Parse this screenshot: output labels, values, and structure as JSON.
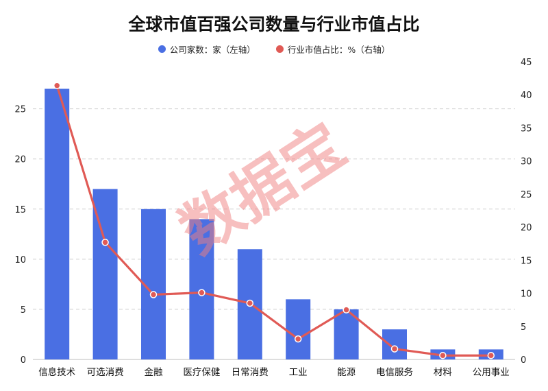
{
  "title": "全球市值百强公司数量与行业市值占比",
  "watermark": "数据宝",
  "colors": {
    "bar": "#4a6fe3",
    "line": "#e05a55",
    "grid": "#cfcfcf",
    "watermark": "#f08080"
  },
  "chart_data": {
    "type": "bar",
    "title": "全球市值百强公司数量与行业市值占比",
    "categories": [
      "信息技术",
      "可选消费",
      "金融",
      "医疗保健",
      "日常消费",
      "工业",
      "能源",
      "电信服务",
      "材料",
      "公用事业"
    ],
    "series": [
      {
        "name": "公司家数：家（左轴）",
        "type": "bar",
        "axis": "left",
        "values": [
          27,
          17,
          15,
          14,
          11,
          6,
          5,
          3,
          1,
          1
        ]
      },
      {
        "name": "行业市值占比：%（右轴）",
        "type": "line",
        "axis": "right",
        "values": [
          41.4,
          17.7,
          9.8,
          10.1,
          8.5,
          3.1,
          7.5,
          1.6,
          0.6,
          0.6
        ]
      }
    ],
    "y_left": {
      "range": [
        0,
        29.7
      ],
      "ticks": [
        0,
        5,
        10,
        15,
        20,
        25
      ]
    },
    "y_right": {
      "range": [
        0,
        45
      ],
      "ticks": [
        0,
        5,
        10,
        15,
        20,
        25,
        30,
        35,
        40,
        45
      ]
    },
    "grid": true,
    "legend_position": "top-center"
  }
}
